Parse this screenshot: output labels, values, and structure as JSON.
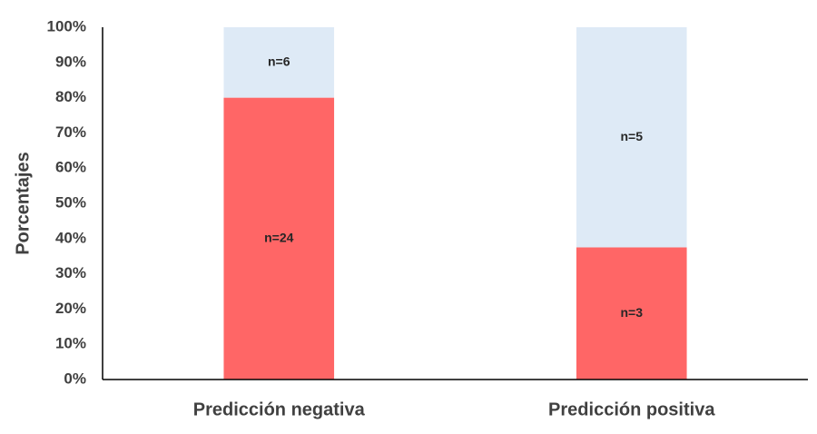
{
  "chart_data": {
    "type": "stacked_bar",
    "y_label": "Porcentajes",
    "categories": [
      "Predicción negativa",
      "Predicción positiva"
    ],
    "series": [
      {
        "color": "#ff6666",
        "values": [
          80,
          37.5
        ],
        "value_labels": [
          "n=24",
          "n=3"
        ]
      },
      {
        "color": "#deeaf6",
        "values": [
          20,
          62.5
        ],
        "value_labels": [
          "n=6",
          "n=5"
        ]
      }
    ],
    "ylim": [
      0,
      100
    ],
    "yticks": [
      {
        "value": 0,
        "label": "0%"
      },
      {
        "value": 10,
        "label": "10%"
      },
      {
        "value": 20,
        "label": "20%"
      },
      {
        "value": 30,
        "label": "30%"
      },
      {
        "value": 40,
        "label": "40%"
      },
      {
        "value": 50,
        "label": "50%"
      },
      {
        "value": 60,
        "label": "60%"
      },
      {
        "value": 70,
        "label": "70%"
      },
      {
        "value": 80,
        "label": "80%"
      },
      {
        "value": 90,
        "label": "90%"
      },
      {
        "value": 100,
        "label": "100%"
      }
    ],
    "grid": false
  }
}
